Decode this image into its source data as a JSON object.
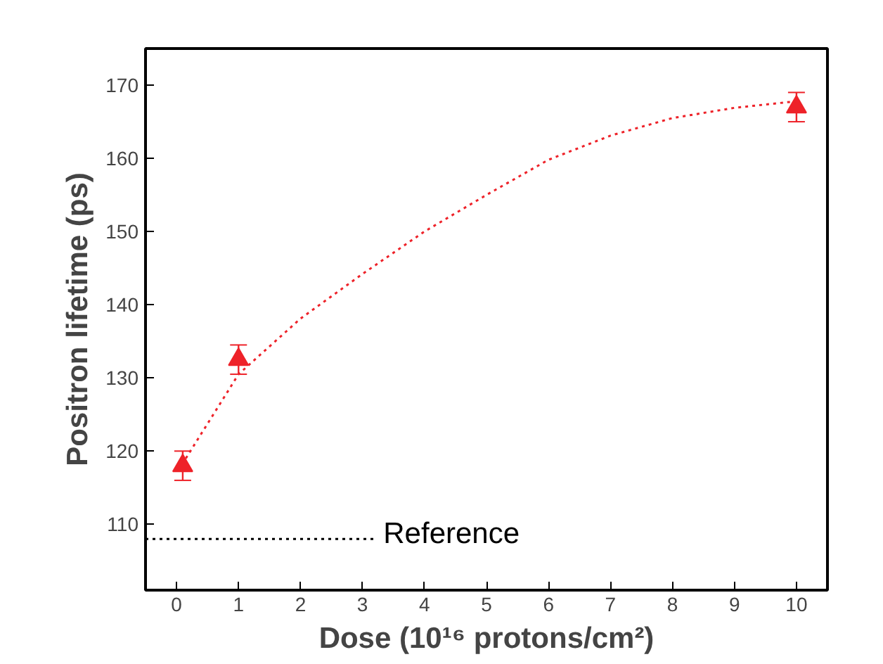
{
  "chart_data": {
    "type": "scatter",
    "xlabel": "Dose (10¹⁶ protons/cm²)",
    "ylabel": "Positron lifetime (ps)",
    "xlim": [
      -0.5,
      10.5
    ],
    "ylim": [
      101,
      175
    ],
    "xticks": [
      0,
      1,
      2,
      3,
      4,
      5,
      6,
      7,
      8,
      9,
      10
    ],
    "yticks": [
      110,
      120,
      130,
      140,
      150,
      160,
      170
    ],
    "grid": false,
    "series": [
      {
        "color": "#ee2229",
        "marker": "triangle",
        "x": [
          0.1,
          1,
          10
        ],
        "values": [
          118,
          132.5,
          167
        ],
        "errors": [
          2,
          2,
          2
        ]
      },
      {
        "type": "line",
        "color": "#ee2229",
        "line_style": "dotted",
        "marker": "none",
        "x": [
          0.15,
          1,
          2,
          3,
          4,
          5,
          6,
          7,
          8,
          9,
          10
        ],
        "values": [
          119,
          130.5,
          138.1,
          144.2,
          150,
          155,
          159.8,
          163.1,
          165.5,
          166.9,
          167.8
        ]
      },
      {
        "type": "line",
        "name": "Reference",
        "color": "#000000",
        "line_style": "dotted",
        "marker": "none",
        "x": [
          -0.5,
          3.2
        ],
        "values": [
          108,
          108
        ]
      }
    ]
  }
}
